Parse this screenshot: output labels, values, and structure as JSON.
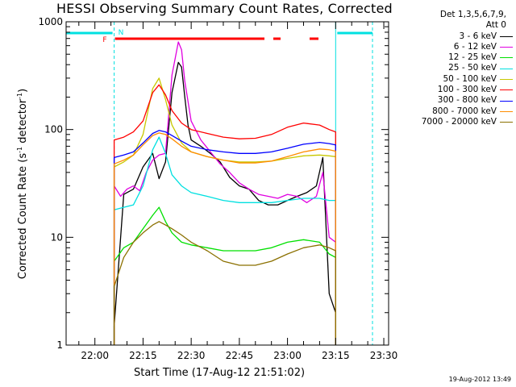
{
  "chart_data": {
    "type": "line",
    "title": "HESSI Observing Summary Count Rates, Corrected",
    "xlabel": "Start Time (17-Aug-12 21:51:02)",
    "ylabel_main": "Corrected Count Rate (s",
    "ylabel_sup1": "-1",
    "ylabel_mid": " detector",
    "ylabel_sup2": "-1",
    "ylabel_end": ")",
    "yscale": "log",
    "ylim": [
      1,
      1000
    ],
    "xlim": [
      "21:51:02",
      "23:31:30"
    ],
    "x_ticks": [
      "22:00",
      "22:15",
      "22:30",
      "22:45",
      "23:00",
      "23:15",
      "23:30"
    ],
    "y_ticks": [
      "1",
      "10",
      "100",
      "1000"
    ],
    "legend_header": [
      "Det 1,3,5,6,7,9,",
      "Att 0"
    ],
    "flags": {
      "flare_label": "F",
      "night_label": "N"
    },
    "data_window": [
      "22:06",
      "23:15"
    ],
    "series": [
      {
        "name": "3 - 6 keV",
        "color": "#000000",
        "x": [
          "22:06",
          "22:09",
          "22:12",
          "22:15",
          "22:18",
          "22:20",
          "22:22",
          "22:24",
          "22:26",
          "22:27",
          "22:28",
          "22:29",
          "22:30",
          "22:33",
          "22:36",
          "22:39",
          "22:42",
          "22:45",
          "22:48",
          "22:51",
          "22:54",
          "22:57",
          "23:00",
          "23:03",
          "23:06",
          "23:09",
          "23:11",
          "23:13",
          "23:15"
        ],
        "y": [
          1.5,
          25,
          28,
          45,
          60,
          35,
          50,
          220,
          420,
          380,
          200,
          110,
          80,
          70,
          60,
          50,
          36,
          30,
          28,
          22,
          20,
          20,
          22,
          24,
          26,
          30,
          55,
          3,
          2
        ]
      },
      {
        "name": "6 - 12 keV",
        "color": "#e000e0",
        "x": [
          "22:06",
          "22:08",
          "22:10",
          "22:12",
          "22:14",
          "22:16",
          "22:18",
          "22:20",
          "22:22",
          "22:24",
          "22:26",
          "22:27",
          "22:28",
          "22:30",
          "22:33",
          "22:36",
          "22:39",
          "22:42",
          "22:45",
          "22:48",
          "22:51",
          "22:54",
          "22:57",
          "23:00",
          "23:03",
          "23:06",
          "23:09",
          "23:11",
          "23:13",
          "23:15"
        ],
        "y": [
          30,
          24,
          28,
          30,
          27,
          40,
          52,
          58,
          60,
          320,
          650,
          550,
          280,
          120,
          80,
          62,
          48,
          40,
          32,
          28,
          25,
          24,
          23,
          25,
          24,
          21,
          24,
          40,
          10,
          9
        ]
      },
      {
        "name": "12 - 25 keV",
        "color": "#00e000",
        "x": [
          "22:06",
          "22:09",
          "22:12",
          "22:15",
          "22:18",
          "22:20",
          "22:22",
          "22:24",
          "22:27",
          "22:30",
          "22:35",
          "22:40",
          "22:45",
          "22:50",
          "22:55",
          "23:00",
          "23:05",
          "23:10",
          "23:13",
          "23:15"
        ],
        "y": [
          6,
          8,
          9,
          12,
          16,
          19,
          14,
          11,
          9,
          8.5,
          8,
          7.5,
          7.5,
          7.5,
          8,
          9,
          9.5,
          9,
          7,
          6.5
        ]
      },
      {
        "name": "25 - 50 keV",
        "color": "#00e0e0",
        "x": [
          "22:06",
          "22:09",
          "22:12",
          "22:15",
          "22:18",
          "22:20",
          "22:22",
          "22:24",
          "22:27",
          "22:30",
          "22:35",
          "22:40",
          "22:45",
          "22:50",
          "22:55",
          "23:00",
          "23:05",
          "23:10",
          "23:13",
          "23:15"
        ],
        "y": [
          18,
          19,
          20,
          30,
          65,
          85,
          60,
          38,
          30,
          26,
          24,
          22,
          21,
          21,
          21,
          22,
          23,
          23,
          22,
          22
        ]
      },
      {
        "name": "50 - 100 keV",
        "color": "#c8c800",
        "x": [
          "22:06",
          "22:09",
          "22:12",
          "22:15",
          "22:18",
          "22:20",
          "22:22",
          "22:24",
          "22:27",
          "22:30",
          "22:35",
          "22:40",
          "22:45",
          "22:50",
          "22:55",
          "23:00",
          "23:05",
          "23:10",
          "23:13",
          "23:15"
        ],
        "y": [
          45,
          50,
          58,
          90,
          240,
          300,
          190,
          110,
          75,
          62,
          56,
          52,
          50,
          50,
          51,
          54,
          57,
          58,
          57,
          56
        ]
      },
      {
        "name": "100 - 300 keV",
        "color": "#ff0000",
        "x": [
          "22:06",
          "22:09",
          "22:12",
          "22:15",
          "22:18",
          "22:20",
          "22:22",
          "22:24",
          "22:27",
          "22:30",
          "22:35",
          "22:40",
          "22:45",
          "22:50",
          "22:55",
          "23:00",
          "23:05",
          "23:10",
          "23:13",
          "23:15"
        ],
        "y": [
          80,
          85,
          95,
          120,
          220,
          260,
          210,
          150,
          115,
          100,
          92,
          85,
          82,
          83,
          90,
          105,
          115,
          110,
          100,
          95
        ]
      },
      {
        "name": "300 - 800 keV",
        "color": "#0000ff",
        "x": [
          "22:06",
          "22:09",
          "22:12",
          "22:15",
          "22:18",
          "22:20",
          "22:22",
          "22:24",
          "22:27",
          "22:30",
          "22:35",
          "22:40",
          "22:45",
          "22:50",
          "22:55",
          "23:00",
          "23:05",
          "23:10",
          "23:13",
          "23:15"
        ],
        "y": [
          55,
          58,
          62,
          75,
          92,
          98,
          95,
          88,
          78,
          70,
          65,
          62,
          60,
          60,
          62,
          67,
          73,
          76,
          74,
          72
        ]
      },
      {
        "name": "800 - 7000 keV",
        "color": "#ff8c00",
        "x": [
          "22:06",
          "22:09",
          "22:12",
          "22:15",
          "22:18",
          "22:20",
          "22:22",
          "22:24",
          "22:27",
          "22:30",
          "22:35",
          "22:40",
          "22:45",
          "22:50",
          "22:55",
          "23:00",
          "23:05",
          "23:10",
          "23:13",
          "23:15"
        ],
        "y": [
          48,
          52,
          58,
          72,
          88,
          93,
          90,
          82,
          70,
          62,
          56,
          52,
          49,
          49,
          51,
          56,
          62,
          66,
          65,
          63
        ]
      },
      {
        "name": "7000 - 20000 keV",
        "color": "#8b7000",
        "x": [
          "22:06",
          "22:09",
          "22:12",
          "22:15",
          "22:18",
          "22:20",
          "22:22",
          "22:24",
          "22:27",
          "22:30",
          "22:35",
          "22:40",
          "22:45",
          "22:50",
          "22:55",
          "23:00",
          "23:05",
          "23:10",
          "23:13",
          "23:15"
        ],
        "y": [
          3.5,
          6.5,
          9,
          11,
          13,
          14,
          13,
          12,
          10.5,
          9,
          7.5,
          6,
          5.5,
          5.5,
          6,
          7,
          8,
          8.5,
          8,
          7.5
        ]
      }
    ]
  },
  "footer_date": "19-Aug-2012 13:49"
}
